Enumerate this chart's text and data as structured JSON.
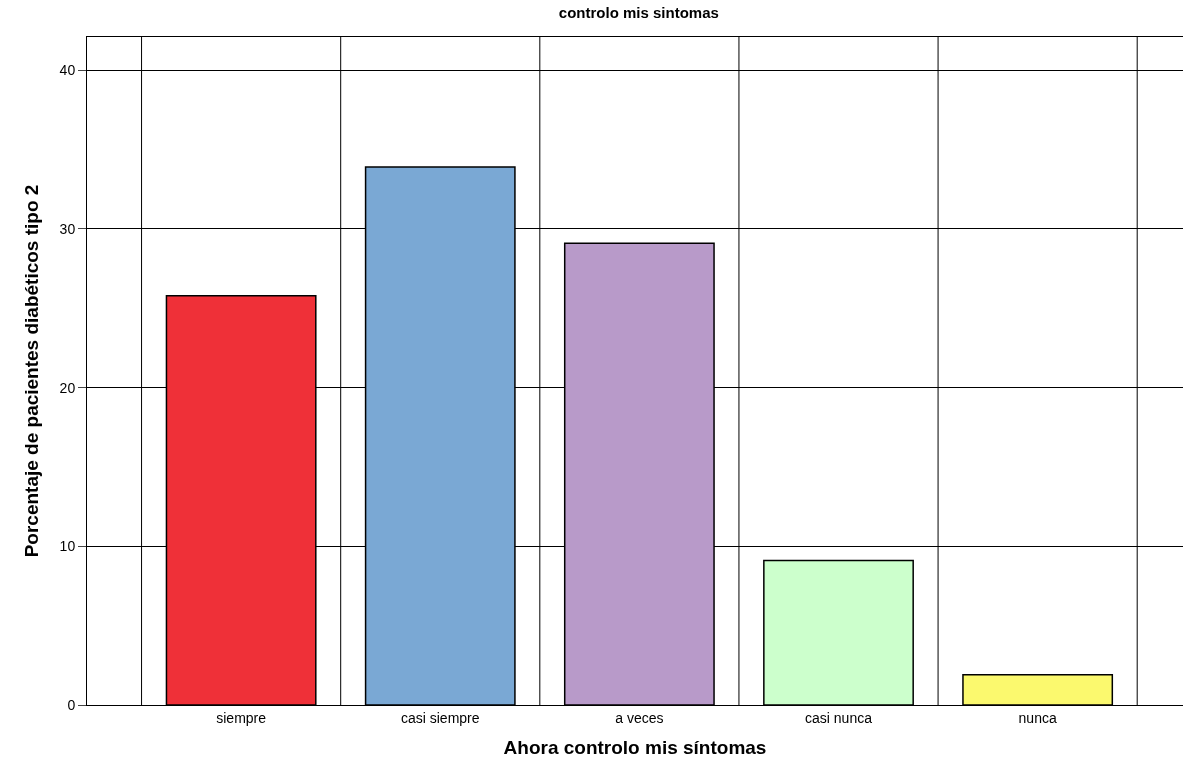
{
  "chart_data": {
    "type": "bar",
    "title": "controlo mis sintomas",
    "xlabel": "Ahora controlo mis síntomas",
    "ylabel": "Porcentaje de pacientes diabéticos tipo 2",
    "categories": [
      "siempre",
      "casi siempre",
      "a veces",
      "casi nunca",
      "nunca"
    ],
    "values": [
      25.8,
      33.9,
      29.1,
      9.1,
      1.9
    ],
    "colors": [
      "#ef3038",
      "#7aa8d4",
      "#b89ac9",
      "#ccffcc",
      "#fbf96e"
    ],
    "ylim": [
      0,
      42.1
    ],
    "yticks": [
      0,
      10,
      20,
      30,
      40
    ],
    "grid": true
  }
}
